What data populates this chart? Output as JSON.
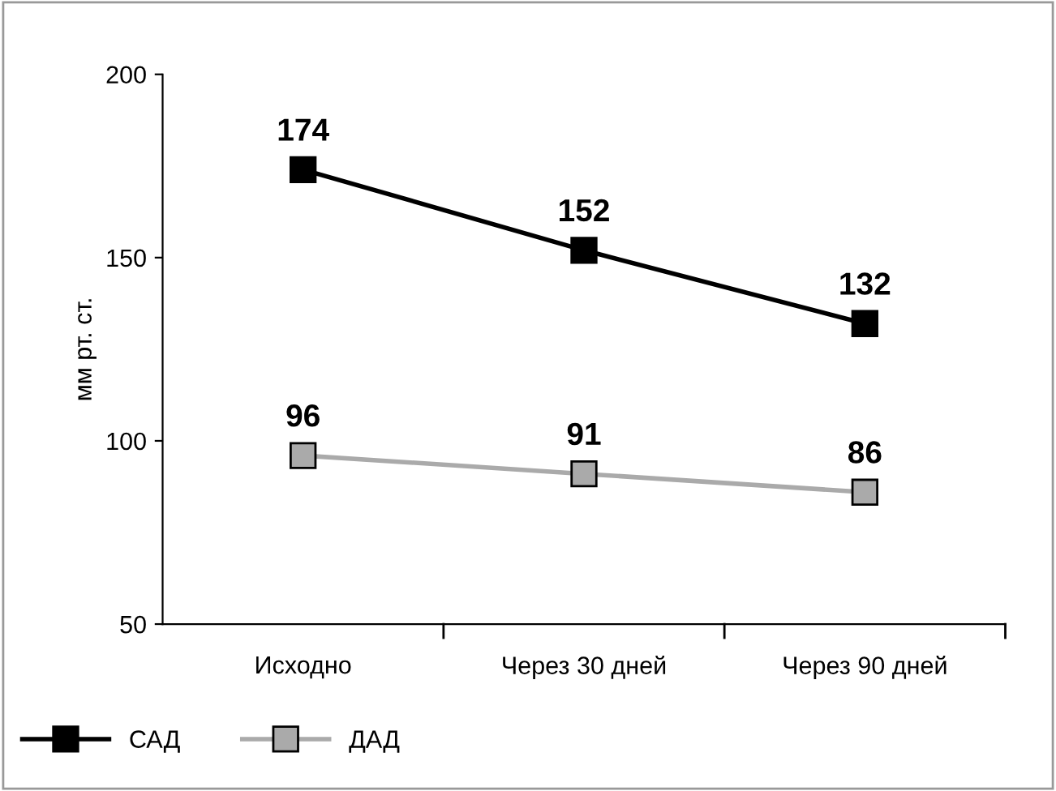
{
  "chart_data": {
    "type": "line",
    "ylabel": "мм рт. ст.",
    "categories": [
      "Исходно",
      "Через 30 дней",
      "Через 90 дней"
    ],
    "series": [
      {
        "name": "САД",
        "color": "#000000",
        "values": [
          174,
          152,
          132
        ]
      },
      {
        "name": "ДАД",
        "color": "#aaaaaa",
        "values": [
          96,
          91,
          86
        ]
      }
    ],
    "ylim": [
      50,
      200
    ],
    "yticks": [
      50,
      100,
      150,
      200
    ],
    "grid": false,
    "legend": "bottom left",
    "marker": "square",
    "line_style": "solid",
    "data_labels": true
  }
}
